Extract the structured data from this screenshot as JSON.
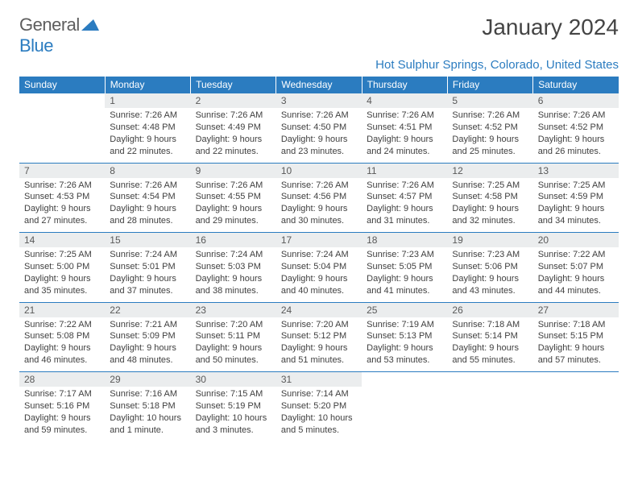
{
  "logo": {
    "text1": "General",
    "text2": "Blue"
  },
  "title": "January 2024",
  "location": "Hot Sulphur Springs, Colorado, United States",
  "colors": {
    "header_bg": "#2b7cc0",
    "header_text": "#ffffff",
    "daynum_bg": "#ebedee",
    "daynum_text": "#595959",
    "body_text": "#404040",
    "logo_gray": "#5e5e5e",
    "logo_blue": "#2b7cc0",
    "border": "#2b7cc0"
  },
  "weekdays": [
    "Sunday",
    "Monday",
    "Tuesday",
    "Wednesday",
    "Thursday",
    "Friday",
    "Saturday"
  ],
  "weeks": [
    [
      null,
      {
        "n": "1",
        "sr": "7:26 AM",
        "ss": "4:48 PM",
        "dl": "9 hours and 22 minutes."
      },
      {
        "n": "2",
        "sr": "7:26 AM",
        "ss": "4:49 PM",
        "dl": "9 hours and 22 minutes."
      },
      {
        "n": "3",
        "sr": "7:26 AM",
        "ss": "4:50 PM",
        "dl": "9 hours and 23 minutes."
      },
      {
        "n": "4",
        "sr": "7:26 AM",
        "ss": "4:51 PM",
        "dl": "9 hours and 24 minutes."
      },
      {
        "n": "5",
        "sr": "7:26 AM",
        "ss": "4:52 PM",
        "dl": "9 hours and 25 minutes."
      },
      {
        "n": "6",
        "sr": "7:26 AM",
        "ss": "4:52 PM",
        "dl": "9 hours and 26 minutes."
      }
    ],
    [
      {
        "n": "7",
        "sr": "7:26 AM",
        "ss": "4:53 PM",
        "dl": "9 hours and 27 minutes."
      },
      {
        "n": "8",
        "sr": "7:26 AM",
        "ss": "4:54 PM",
        "dl": "9 hours and 28 minutes."
      },
      {
        "n": "9",
        "sr": "7:26 AM",
        "ss": "4:55 PM",
        "dl": "9 hours and 29 minutes."
      },
      {
        "n": "10",
        "sr": "7:26 AM",
        "ss": "4:56 PM",
        "dl": "9 hours and 30 minutes."
      },
      {
        "n": "11",
        "sr": "7:26 AM",
        "ss": "4:57 PM",
        "dl": "9 hours and 31 minutes."
      },
      {
        "n": "12",
        "sr": "7:25 AM",
        "ss": "4:58 PM",
        "dl": "9 hours and 32 minutes."
      },
      {
        "n": "13",
        "sr": "7:25 AM",
        "ss": "4:59 PM",
        "dl": "9 hours and 34 minutes."
      }
    ],
    [
      {
        "n": "14",
        "sr": "7:25 AM",
        "ss": "5:00 PM",
        "dl": "9 hours and 35 minutes."
      },
      {
        "n": "15",
        "sr": "7:24 AM",
        "ss": "5:01 PM",
        "dl": "9 hours and 37 minutes."
      },
      {
        "n": "16",
        "sr": "7:24 AM",
        "ss": "5:03 PM",
        "dl": "9 hours and 38 minutes."
      },
      {
        "n": "17",
        "sr": "7:24 AM",
        "ss": "5:04 PM",
        "dl": "9 hours and 40 minutes."
      },
      {
        "n": "18",
        "sr": "7:23 AM",
        "ss": "5:05 PM",
        "dl": "9 hours and 41 minutes."
      },
      {
        "n": "19",
        "sr": "7:23 AM",
        "ss": "5:06 PM",
        "dl": "9 hours and 43 minutes."
      },
      {
        "n": "20",
        "sr": "7:22 AM",
        "ss": "5:07 PM",
        "dl": "9 hours and 44 minutes."
      }
    ],
    [
      {
        "n": "21",
        "sr": "7:22 AM",
        "ss": "5:08 PM",
        "dl": "9 hours and 46 minutes."
      },
      {
        "n": "22",
        "sr": "7:21 AM",
        "ss": "5:09 PM",
        "dl": "9 hours and 48 minutes."
      },
      {
        "n": "23",
        "sr": "7:20 AM",
        "ss": "5:11 PM",
        "dl": "9 hours and 50 minutes."
      },
      {
        "n": "24",
        "sr": "7:20 AM",
        "ss": "5:12 PM",
        "dl": "9 hours and 51 minutes."
      },
      {
        "n": "25",
        "sr": "7:19 AM",
        "ss": "5:13 PM",
        "dl": "9 hours and 53 minutes."
      },
      {
        "n": "26",
        "sr": "7:18 AM",
        "ss": "5:14 PM",
        "dl": "9 hours and 55 minutes."
      },
      {
        "n": "27",
        "sr": "7:18 AM",
        "ss": "5:15 PM",
        "dl": "9 hours and 57 minutes."
      }
    ],
    [
      {
        "n": "28",
        "sr": "7:17 AM",
        "ss": "5:16 PM",
        "dl": "9 hours and 59 minutes."
      },
      {
        "n": "29",
        "sr": "7:16 AM",
        "ss": "5:18 PM",
        "dl": "10 hours and 1 minute."
      },
      {
        "n": "30",
        "sr": "7:15 AM",
        "ss": "5:19 PM",
        "dl": "10 hours and 3 minutes."
      },
      {
        "n": "31",
        "sr": "7:14 AM",
        "ss": "5:20 PM",
        "dl": "10 hours and 5 minutes."
      },
      null,
      null,
      null
    ]
  ],
  "labels": {
    "sunrise": "Sunrise:",
    "sunset": "Sunset:",
    "daylight": "Daylight:"
  }
}
